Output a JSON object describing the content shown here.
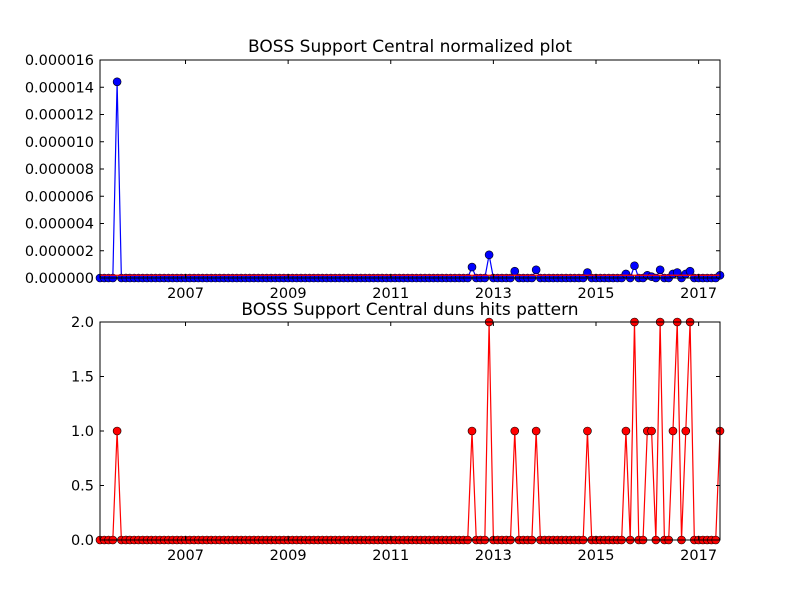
{
  "chart_data": [
    {
      "type": "line",
      "title": "BOSS Support Central normalized plot",
      "xlabel": "",
      "ylabel": "",
      "xlim": [
        "2005-05",
        "2017-06"
      ],
      "ylim": [
        0,
        1.6e-05
      ],
      "grid": false,
      "x_tick_labels": [
        "2007",
        "2009",
        "2011",
        "2013",
        "2015",
        "2017"
      ],
      "y_tick_labels": [
        "0.000000",
        "0.000002",
        "0.000004",
        "0.000006",
        "0.000008",
        "0.000010",
        "0.000012",
        "0.000014",
        "0.000016"
      ],
      "series": [
        {
          "color": "#0000ff",
          "marker": "circle",
          "baseline_value": 0,
          "peaks": [
            {
              "x": "2005-09",
              "y": 1.44e-05
            },
            {
              "x": "2012-08",
              "y": 8e-07
            },
            {
              "x": "2012-12",
              "y": 1.7e-06
            },
            {
              "x": "2013-06",
              "y": 5e-07
            },
            {
              "x": "2013-11",
              "y": 6e-07
            },
            {
              "x": "2014-11",
              "y": 4e-07
            },
            {
              "x": "2015-08",
              "y": 3e-07
            },
            {
              "x": "2015-10",
              "y": 9e-07
            },
            {
              "x": "2016-01",
              "y": 2e-07
            },
            {
              "x": "2016-02",
              "y": 1e-07
            },
            {
              "x": "2016-04",
              "y": 6e-07
            },
            {
              "x": "2016-07",
              "y": 3e-07
            },
            {
              "x": "2016-08",
              "y": 4e-07
            },
            {
              "x": "2016-10",
              "y": 3e-07
            },
            {
              "x": "2016-11",
              "y": 5e-07
            },
            {
              "x": "2017-06",
              "y": 2e-07
            }
          ]
        },
        {
          "color": "#ff0000",
          "marker": "none",
          "baseline_value": 2e-07,
          "peaks": []
        }
      ]
    },
    {
      "type": "line",
      "title": "BOSS Support Central duns hits pattern",
      "xlabel": "",
      "ylabel": "",
      "xlim": [
        "2005-05",
        "2017-06"
      ],
      "ylim": [
        0,
        2.0
      ],
      "grid": false,
      "x_tick_labels": [
        "2007",
        "2009",
        "2011",
        "2013",
        "2015",
        "2017"
      ],
      "y_tick_labels": [
        "0.0",
        "0.5",
        "1.0",
        "1.5",
        "2.0"
      ],
      "series": [
        {
          "color": "#ff0000",
          "marker": "circle",
          "baseline_value": 0,
          "peaks": [
            {
              "x": "2005-09",
              "y": 1
            },
            {
              "x": "2012-08",
              "y": 1
            },
            {
              "x": "2012-12",
              "y": 2
            },
            {
              "x": "2013-06",
              "y": 1
            },
            {
              "x": "2013-11",
              "y": 1
            },
            {
              "x": "2014-11",
              "y": 1
            },
            {
              "x": "2015-08",
              "y": 1
            },
            {
              "x": "2015-10",
              "y": 2
            },
            {
              "x": "2016-01",
              "y": 1
            },
            {
              "x": "2016-02",
              "y": 1
            },
            {
              "x": "2016-04",
              "y": 2
            },
            {
              "x": "2016-07",
              "y": 1
            },
            {
              "x": "2016-08",
              "y": 2
            },
            {
              "x": "2016-10",
              "y": 1
            },
            {
              "x": "2016-11",
              "y": 2
            },
            {
              "x": "2017-06",
              "y": 1
            }
          ]
        }
      ]
    }
  ]
}
